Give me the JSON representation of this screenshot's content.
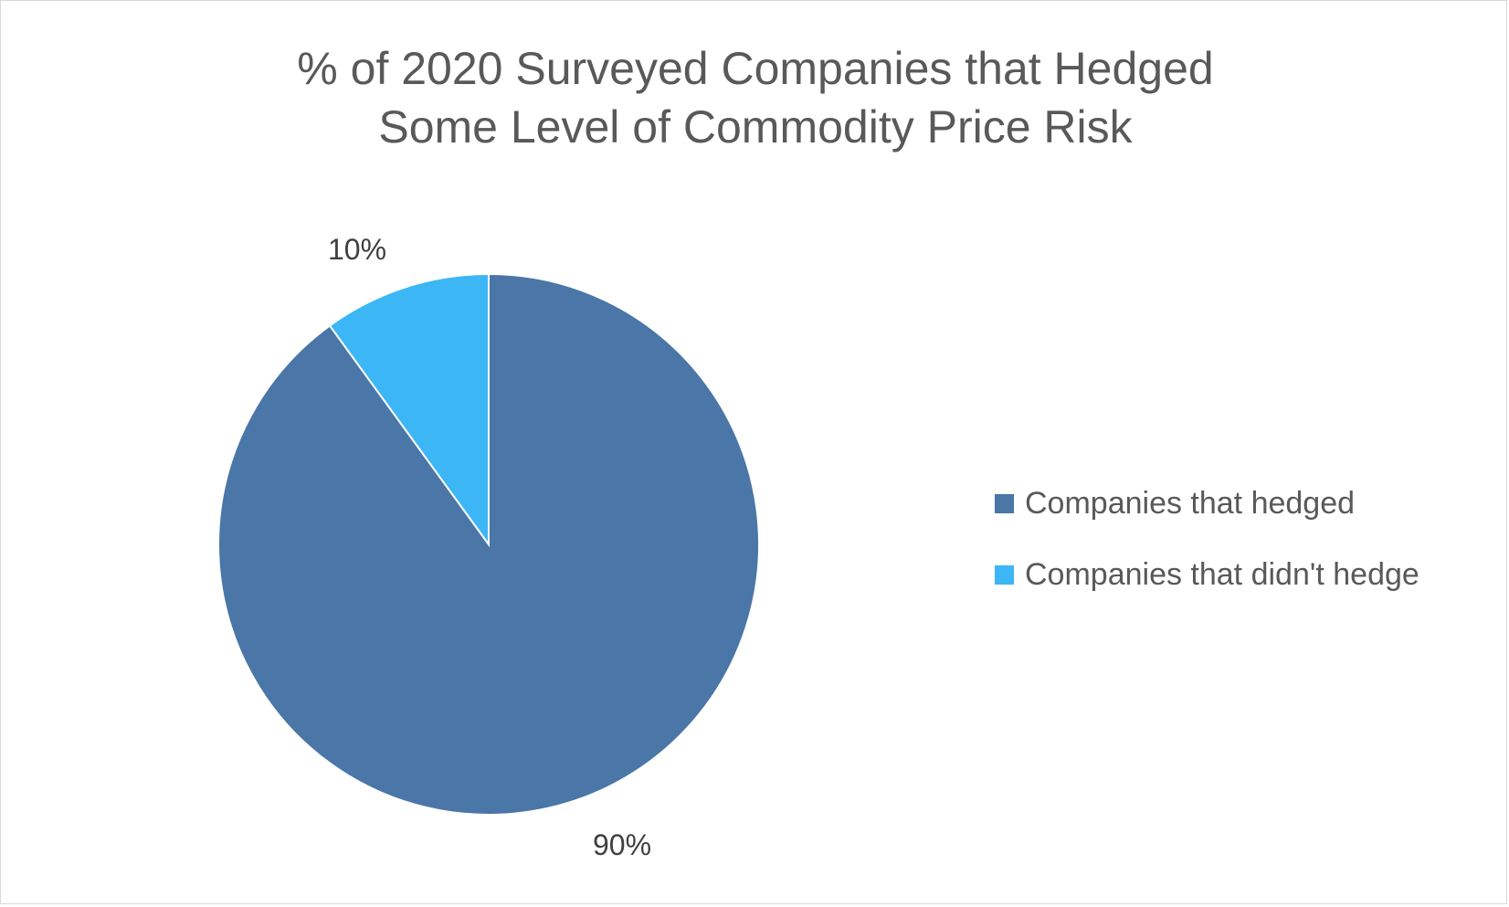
{
  "chart_data": {
    "type": "pie",
    "title": "% of 2020 Surveyed Companies that Hedged Some Level of Commodity Price Risk",
    "title_lines": [
      "% of 2020 Surveyed Companies that Hedged",
      "Some Level of Commodity Price Risk"
    ],
    "categories": [
      "Companies that hedged",
      "Companies that didn't hedge"
    ],
    "values": [
      90,
      10
    ],
    "data_labels": [
      "90%",
      "10%"
    ],
    "colors": [
      "#4a76a8",
      "#3cb6f5"
    ],
    "legend_position": "right",
    "start_angle": "12 o'clock, clockwise"
  }
}
